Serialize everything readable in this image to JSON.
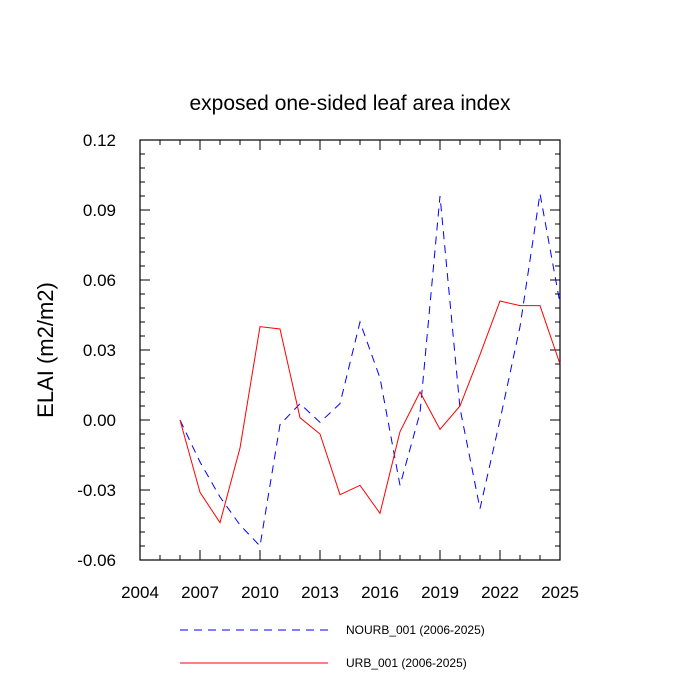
{
  "chart_data": {
    "type": "line",
    "title": "exposed one-sided leaf area index",
    "xlabel": "",
    "ylabel": "ELAI  (m2/m2)",
    "xlim": [
      2004,
      2025
    ],
    "ylim": [
      -0.06,
      0.12
    ],
    "xticks": [
      2004,
      2007,
      2010,
      2013,
      2016,
      2019,
      2022,
      2025
    ],
    "yticks": [
      -0.06,
      -0.03,
      0.0,
      0.03,
      0.06,
      0.09,
      0.12
    ],
    "yticklabels": [
      "-0.06",
      "-0.03",
      "0.00",
      "0.03",
      "0.06",
      "0.09",
      "0.12"
    ],
    "x": [
      2006,
      2007,
      2008,
      2009,
      2010,
      2011,
      2012,
      2013,
      2014,
      2015,
      2016,
      2017,
      2018,
      2019,
      2020,
      2021,
      2022,
      2023,
      2024,
      2025
    ],
    "series": [
      {
        "name": "NOURB_001 (2006-2025)",
        "color": "#0000ff",
        "dash": "dashed",
        "values": [
          0.0,
          -0.018,
          -0.033,
          -0.045,
          -0.054,
          -0.002,
          0.007,
          -0.001,
          0.007,
          0.042,
          0.018,
          -0.028,
          0.003,
          0.096,
          0.005,
          -0.038,
          0.0,
          0.04,
          0.097,
          0.05
        ]
      },
      {
        "name": "URB_001 (2006-2025)",
        "color": "#ff0000",
        "dash": "solid",
        "values": [
          0.0,
          -0.031,
          -0.044,
          -0.012,
          0.04,
          0.039,
          0.001,
          -0.006,
          -0.032,
          -0.028,
          -0.04,
          -0.005,
          0.012,
          -0.004,
          0.006,
          0.028,
          0.051,
          0.049,
          0.049,
          0.024
        ]
      }
    ],
    "legend_position": "bottom"
  }
}
